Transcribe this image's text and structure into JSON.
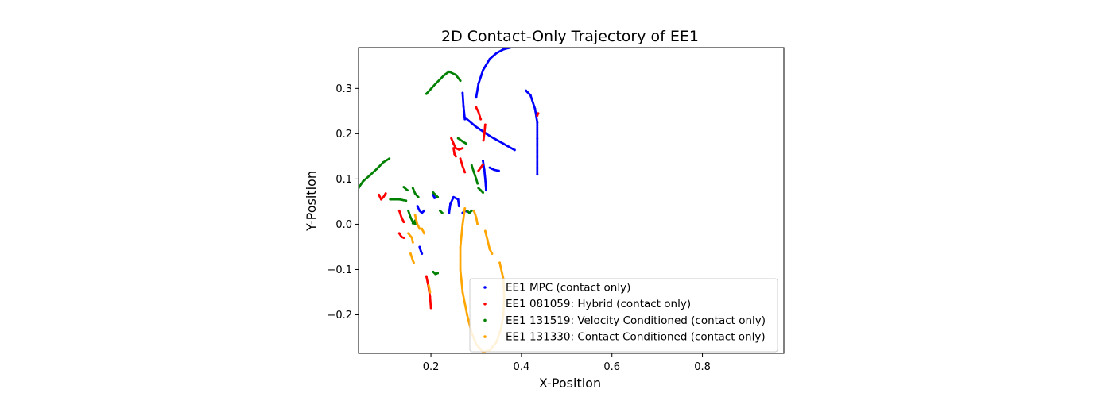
{
  "chart_data": {
    "type": "scatter",
    "title": "2D Contact-Only Trajectory of EE1",
    "xlabel": "X-Position",
    "ylabel": "Y-Position",
    "xlim": [
      0.04,
      0.98
    ],
    "ylim": [
      -0.285,
      0.39
    ],
    "xticks": [
      0.2,
      0.4,
      0.6,
      0.8
    ],
    "xtick_labels": [
      "0.2",
      "0.4",
      "0.6",
      "0.8"
    ],
    "yticks": [
      -0.2,
      -0.1,
      0.0,
      0.1,
      0.2,
      0.3
    ],
    "ytick_labels": [
      "−0.2",
      "−0.1",
      "0.0",
      "0.1",
      "0.2",
      "0.3"
    ],
    "grid": false,
    "legend_position": "lower right",
    "series": [
      {
        "name": "EE1 MPC (contact only)",
        "color": "#0000ff",
        "segments": [
          [
            [
              0.3,
              0.28
            ],
            [
              0.305,
              0.31
            ],
            [
              0.315,
              0.34
            ],
            [
              0.33,
              0.365
            ],
            [
              0.345,
              0.378
            ],
            [
              0.36,
              0.386
            ],
            [
              0.375,
              0.39
            ]
          ],
          [
            [
              0.27,
              0.29
            ],
            [
              0.272,
              0.26
            ],
            [
              0.275,
              0.232
            ]
          ],
          [
            [
              0.276,
              0.235
            ],
            [
              0.3,
              0.215
            ],
            [
              0.33,
              0.195
            ],
            [
              0.36,
              0.178
            ],
            [
              0.385,
              0.164
            ]
          ],
          [
            [
              0.41,
              0.295
            ],
            [
              0.42,
              0.285
            ],
            [
              0.43,
              0.255
            ],
            [
              0.435,
              0.225
            ],
            [
              0.435,
              0.19
            ],
            [
              0.435,
              0.15
            ],
            [
              0.435,
              0.11
            ]
          ],
          [
            [
              0.315,
              0.14
            ],
            [
              0.318,
              0.12
            ],
            [
              0.32,
              0.1
            ],
            [
              0.322,
              0.075
            ]
          ],
          [
            [
              0.33,
              0.125
            ],
            [
              0.34,
              0.12
            ],
            [
              0.35,
              0.118
            ]
          ],
          [
            [
              0.24,
              0.025
            ],
            [
              0.243,
              0.045
            ],
            [
              0.25,
              0.06
            ],
            [
              0.26,
              0.055
            ],
            [
              0.262,
              0.04
            ]
          ],
          [
            [
              0.27,
              0.025
            ],
            [
              0.275,
              0.03
            ],
            [
              0.28,
              0.028
            ]
          ],
          [
            [
              0.205,
              0.065
            ],
            [
              0.208,
              0.058
            ],
            [
              0.212,
              0.06
            ]
          ],
          [
            [
              0.17,
              0.04
            ],
            [
              0.175,
              0.03
            ],
            [
              0.18,
              0.025
            ],
            [
              0.185,
              0.03
            ]
          ],
          [
            [
              0.175,
              -0.05
            ],
            [
              0.178,
              -0.06
            ],
            [
              0.18,
              -0.065
            ]
          ]
        ]
      },
      {
        "name": "EE1 081059: Hybrid (contact only)",
        "color": "#ff0000",
        "segments": [
          [
            [
              0.3,
              0.258
            ],
            [
              0.305,
              0.248
            ],
            [
              0.31,
              0.232
            ]
          ],
          [
            [
              0.32,
              0.22
            ],
            [
              0.318,
              0.2
            ],
            [
              0.316,
              0.185
            ]
          ],
          [
            [
              0.245,
              0.19
            ],
            [
              0.25,
              0.178
            ],
            [
              0.255,
              0.168
            ],
            [
              0.262,
              0.165
            ],
            [
              0.27,
              0.168
            ]
          ],
          [
            [
              0.25,
              0.168
            ],
            [
              0.252,
              0.155
            ],
            [
              0.255,
              0.15
            ]
          ],
          [
            [
              0.265,
              0.145
            ],
            [
              0.27,
              0.128
            ],
            [
              0.275,
              0.115
            ]
          ],
          [
            [
              0.305,
              0.118
            ],
            [
              0.31,
              0.125
            ],
            [
              0.315,
              0.132
            ]
          ],
          [
            [
              0.085,
              0.065
            ],
            [
              0.09,
              0.055
            ],
            [
              0.095,
              0.06
            ],
            [
              0.1,
              0.068
            ]
          ],
          [
            [
              0.13,
              0.03
            ],
            [
              0.135,
              0.015
            ],
            [
              0.14,
              0.005
            ]
          ],
          [
            [
              0.13,
              -0.02
            ],
            [
              0.135,
              -0.028
            ],
            [
              0.14,
              -0.03
            ]
          ],
          [
            [
              0.19,
              -0.115
            ],
            [
              0.195,
              -0.14
            ],
            [
              0.198,
              -0.16
            ],
            [
              0.2,
              -0.185
            ]
          ],
          [
            [
              0.435,
              0.24
            ],
            [
              0.437,
              0.245
            ]
          ]
        ]
      },
      {
        "name": "EE1 131519: Velocity Conditioned (contact only)",
        "color": "#008000",
        "segments": [
          [
            [
              0.04,
              0.08
            ],
            [
              0.05,
              0.095
            ],
            [
              0.065,
              0.108
            ],
            [
              0.08,
              0.122
            ],
            [
              0.095,
              0.137
            ],
            [
              0.108,
              0.145
            ]
          ],
          [
            [
              0.19,
              0.288
            ],
            [
              0.21,
              0.31
            ],
            [
              0.23,
              0.33
            ],
            [
              0.24,
              0.337
            ],
            [
              0.255,
              0.33
            ],
            [
              0.265,
              0.317
            ]
          ],
          [
            [
              0.26,
              0.19
            ],
            [
              0.27,
              0.183
            ],
            [
              0.278,
              0.178
            ]
          ],
          [
            [
              0.29,
              0.13
            ],
            [
              0.295,
              0.115
            ],
            [
              0.3,
              0.1
            ],
            [
              0.303,
              0.09
            ]
          ],
          [
            [
              0.305,
              0.08
            ],
            [
              0.31,
              0.075
            ],
            [
              0.315,
              0.07
            ]
          ],
          [
            [
              0.14,
              0.082
            ],
            [
              0.148,
              0.075
            ]
          ],
          [
            [
              0.16,
              0.08
            ],
            [
              0.165,
              0.068
            ],
            [
              0.172,
              0.06
            ]
          ],
          [
            [
              0.11,
              0.055
            ],
            [
              0.13,
              0.055
            ],
            [
              0.145,
              0.052
            ]
          ],
          [
            [
              0.205,
              0.07
            ],
            [
              0.21,
              0.065
            ],
            [
              0.215,
              0.06
            ]
          ],
          [
            [
              0.15,
              0.03
            ],
            [
              0.155,
              0.015
            ],
            [
              0.16,
              0.005
            ],
            [
              0.165,
              0.0
            ]
          ],
          [
            [
              0.22,
              0.03
            ],
            [
              0.225,
              0.025
            ]
          ],
          [
            [
              0.28,
              0.03
            ],
            [
              0.285,
              0.025
            ],
            [
              0.29,
              0.03
            ]
          ],
          [
            [
              0.16,
              0.002
            ],
            [
              0.165,
              0.008
            ],
            [
              0.168,
              0.0
            ]
          ],
          [
            [
              0.205,
              -0.105
            ],
            [
              0.21,
              -0.11
            ],
            [
              0.215,
              -0.108
            ]
          ]
        ]
      },
      {
        "name": "EE1 131330: Contact Conditioned (contact only)",
        "color": "#ffa500",
        "segments": [
          [
            [
              0.275,
              0.035
            ],
            [
              0.27,
              0.0
            ],
            [
              0.265,
              -0.05
            ],
            [
              0.265,
              -0.1
            ],
            [
              0.27,
              -0.15
            ],
            [
              0.28,
              -0.2
            ],
            [
              0.29,
              -0.24
            ],
            [
              0.3,
              -0.265
            ],
            [
              0.315,
              -0.282
            ],
            [
              0.33,
              -0.278
            ],
            [
              0.345,
              -0.26
            ],
            [
              0.355,
              -0.23
            ],
            [
              0.36,
              -0.2
            ],
            [
              0.362,
              -0.16
            ],
            [
              0.36,
              -0.12
            ],
            [
              0.352,
              -0.085
            ]
          ],
          [
            [
              0.295,
              0.03
            ],
            [
              0.3,
              0.015
            ],
            [
              0.303,
              0.0
            ]
          ],
          [
            [
              0.32,
              -0.015
            ],
            [
              0.325,
              -0.035
            ],
            [
              0.33,
              -0.055
            ],
            [
              0.335,
              -0.065
            ]
          ],
          [
            [
              0.165,
              0.02
            ],
            [
              0.17,
              0.0
            ],
            [
              0.175,
              -0.01
            ]
          ],
          [
            [
              0.15,
              -0.02
            ],
            [
              0.158,
              -0.03
            ],
            [
              0.16,
              -0.04
            ]
          ],
          [
            [
              0.155,
              -0.065
            ],
            [
              0.16,
              -0.08
            ],
            [
              0.162,
              -0.085
            ]
          ],
          [
            [
              0.18,
              -0.01
            ],
            [
              0.185,
              -0.02
            ]
          ],
          [
            [
              0.195,
              -0.135
            ],
            [
              0.198,
              -0.15
            ]
          ]
        ]
      }
    ]
  }
}
